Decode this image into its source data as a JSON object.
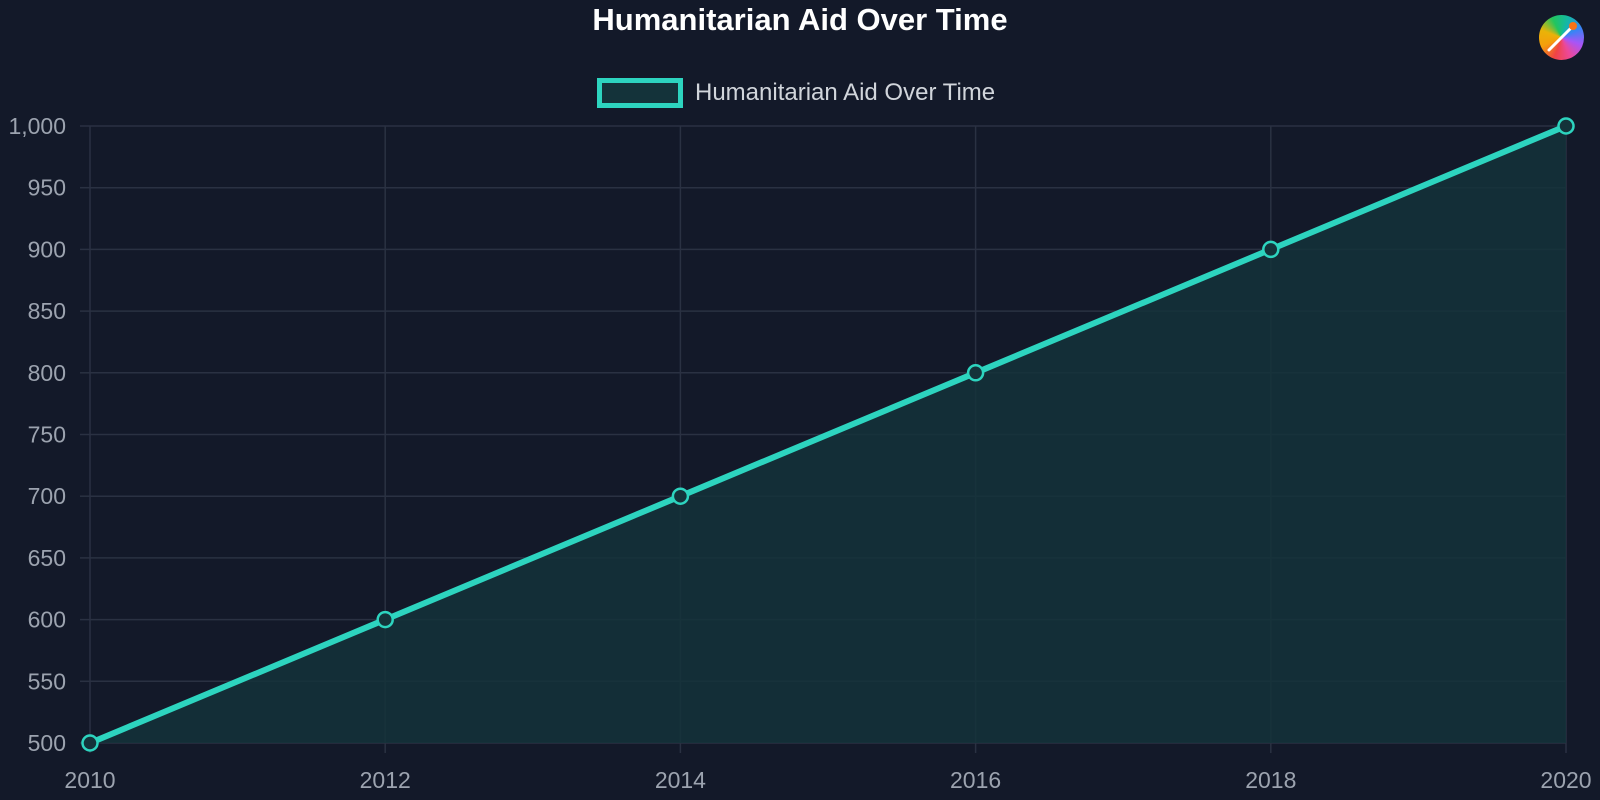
{
  "chart_data": {
    "type": "line",
    "title": "Humanitarian Aid Over Time",
    "x": [
      2010,
      2012,
      2014,
      2016,
      2018,
      2020
    ],
    "series": [
      {
        "name": "Humanitarian Aid Over Time",
        "values": [
          500,
          600,
          700,
          800,
          900,
          1000
        ],
        "color": "#2dd4bf",
        "fill": "#14333a"
      }
    ],
    "xlim": [
      2010,
      2020
    ],
    "ylim": [
      500,
      1000
    ],
    "x_ticks": [
      "2010",
      "2012",
      "2014",
      "2016",
      "2018",
      "2020"
    ],
    "y_ticks": [
      "500",
      "550",
      "600",
      "650",
      "700",
      "750",
      "800",
      "850",
      "900",
      "950",
      "1,000"
    ],
    "grid": true,
    "legend_position": "top-center"
  },
  "colors": {
    "background": "#131929",
    "grid": "#2a3142",
    "tick_text": "#9ca3af",
    "title_text": "#ffffff",
    "legend_text": "#d1d5db"
  },
  "icons": {
    "logo": "palette-brush-logo-icon"
  }
}
